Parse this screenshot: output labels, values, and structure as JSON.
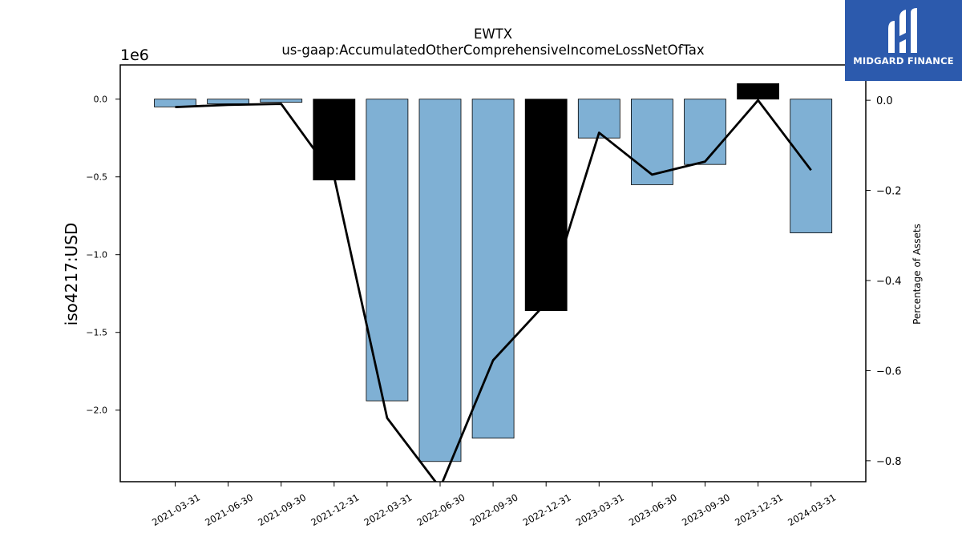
{
  "chart_data": {
    "type": "bar",
    "title": "EWTX",
    "subtitle": "us-gaap:AccumulatedOtherComprehensiveIncomeLossNetOfTax",
    "ylabel": "iso4217:USD",
    "y2label": "Percentage of Assets",
    "y_offset_label": "1e6",
    "categories": [
      "2021-03-31",
      "2021-06-30",
      "2021-09-30",
      "2021-12-31",
      "2022-03-31",
      "2022-06-30",
      "2022-09-30",
      "2022-12-31",
      "2023-03-31",
      "2023-06-30",
      "2023-09-30",
      "2023-12-31",
      "2024-03-31"
    ],
    "series": [
      {
        "values": [
          -50000,
          -30000,
          -20000,
          -520000,
          -1940000,
          -2330000,
          -2180000,
          -1360000,
          -250000,
          -550000,
          -420000,
          100000,
          -860000
        ]
      },
      {
        "values": [
          -0.015,
          -0.01,
          -0.008,
          -0.17,
          -0.705,
          -0.86,
          -0.577,
          -0.45,
          -0.072,
          -0.165,
          -0.136,
          0.0,
          -0.155
        ],
        "axis": "right"
      }
    ],
    "bar_colors": [
      "#7fb0d4",
      "#7fb0d4",
      "#7fb0d4",
      "#000000",
      "#7fb0d4",
      "#7fb0d4",
      "#7fb0d4",
      "#000000",
      "#7fb0d4",
      "#7fb0d4",
      "#7fb0d4",
      "#000000",
      "#7fb0d4"
    ],
    "ylim": [
      -2460000,
      220000
    ],
    "y2lim": [
      -0.8465,
      0.0785
    ],
    "yticks": [
      0.0,
      -0.5,
      -1.0,
      -1.5,
      -2.0
    ],
    "ytick_values": [
      0,
      -500000,
      -1000000,
      -1500000,
      -2000000
    ],
    "ytick_labels": [
      "0.0",
      "−0.5",
      "−1.0",
      "−1.5",
      "−2.0"
    ],
    "y2ticks": [
      0.0,
      -0.2,
      -0.4,
      -0.6,
      -0.8
    ],
    "y2tick_labels": [
      "0.0",
      "−0.2",
      "−0.4",
      "−0.6",
      "−0.8"
    ],
    "grid": false,
    "legend": "none"
  },
  "logo": {
    "text": "MIDGARD FINANCE"
  }
}
